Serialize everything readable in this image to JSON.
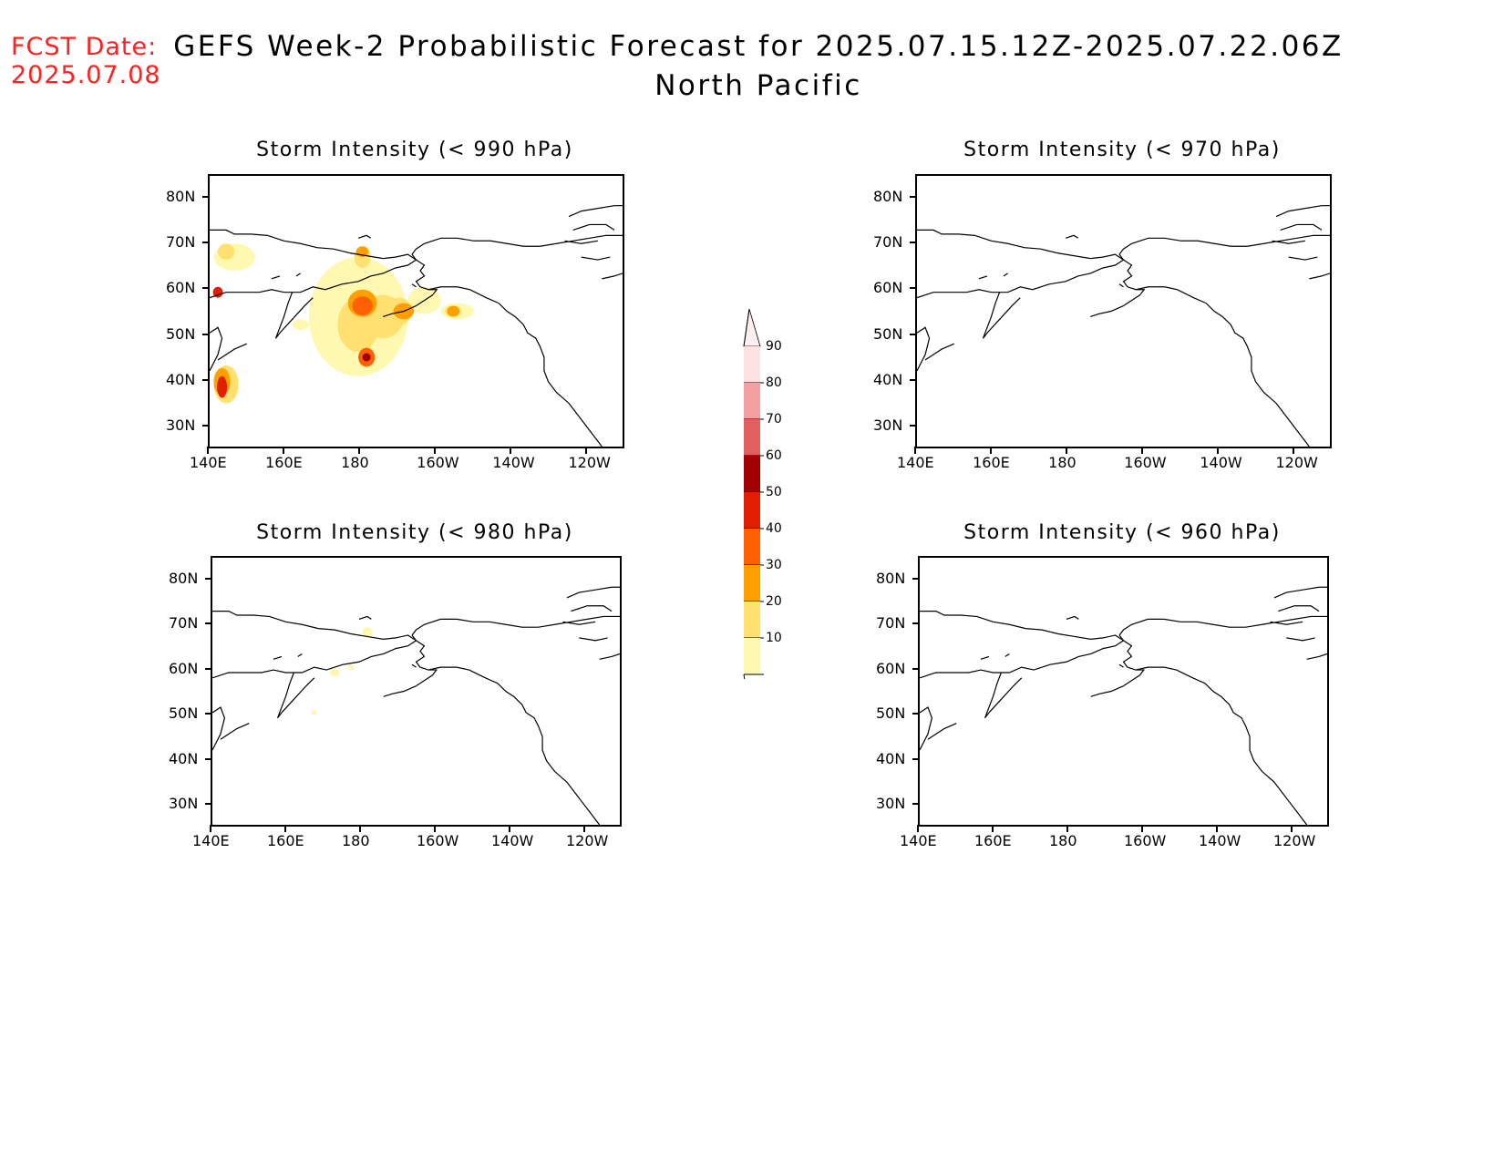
{
  "header": {
    "fcst_line1": "FCST Date:",
    "fcst_line2": "2025.07.08",
    "title_line1": "GEFS Week-2 Probabilistic Forecast for 2025.07.15.12Z-2025.07.22.06Z",
    "title_line2": "North Pacific"
  },
  "axes": {
    "lat_labels": [
      "80N",
      "70N",
      "60N",
      "50N",
      "40N",
      "30N"
    ],
    "lon_labels": [
      "140E",
      "160E",
      "180",
      "160W",
      "140W",
      "120W"
    ]
  },
  "panels": [
    {
      "title": "Storm Intensity (< 990 hPa)",
      "shading": "high"
    },
    {
      "title": "Storm Intensity (< 970 hPa)",
      "shading": "none"
    },
    {
      "title": "Storm Intensity (< 980 hPa)",
      "shading": "low"
    },
    {
      "title": "Storm Intensity (< 960 hPa)",
      "shading": "none"
    }
  ],
  "colorbar": {
    "labels": [
      "90",
      "80",
      "70",
      "60",
      "50",
      "40",
      "30",
      "20",
      "10"
    ],
    "colors": [
      "#fde0e0",
      "#f4a0a0",
      "#e06060",
      "#a00000",
      "#e01e00",
      "#ff6000",
      "#ff9f00",
      "#ffe070",
      "#fff8b0"
    ]
  }
}
